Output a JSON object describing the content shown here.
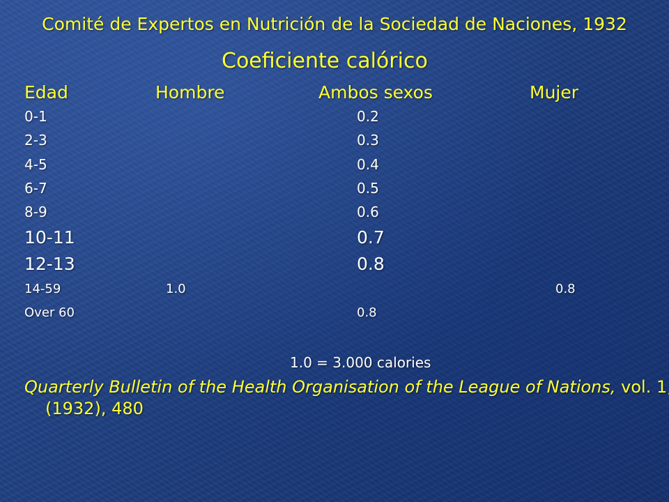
{
  "slide": {
    "title": "Comité de Expertos en Nutrición de la Sociedad de Naciones, 1932",
    "subtitle": "Coeficiente calórico"
  },
  "table": {
    "headers": {
      "age": "Edad",
      "male": "Hombre",
      "both": "Ambos sexos",
      "female": "Mujer"
    },
    "rows": [
      {
        "age": "0-1",
        "male": "",
        "both": "0.2",
        "female": ""
      },
      {
        "age": "2-3",
        "male": "",
        "both": "0.3",
        "female": ""
      },
      {
        "age": "4-5",
        "male": "",
        "both": "0.4",
        "female": ""
      },
      {
        "age": "6-7",
        "male": "",
        "both": "0.5",
        "female": ""
      },
      {
        "age": "8-9",
        "male": "",
        "both": "0.6",
        "female": ""
      },
      {
        "age": "10-11",
        "male": "",
        "both": "0.7",
        "female": ""
      },
      {
        "age": "12-13",
        "male": "",
        "both": "0.8",
        "female": ""
      },
      {
        "age": "14-59",
        "male": "1.0",
        "both": "",
        "female": "0.8"
      },
      {
        "age": "Over 60",
        "male": "",
        "both": "0.8",
        "female": ""
      }
    ]
  },
  "note": "1.0  =  3.000 calories",
  "citation": {
    "title_italic": "Quarterly Bulletin of the Health Organisation of the League of Nations,",
    "rest": " vol. 1, (1932), 480"
  },
  "colors": {
    "title": "#ffff33",
    "body_text": "#ffffff",
    "background": "#1f3f80"
  }
}
